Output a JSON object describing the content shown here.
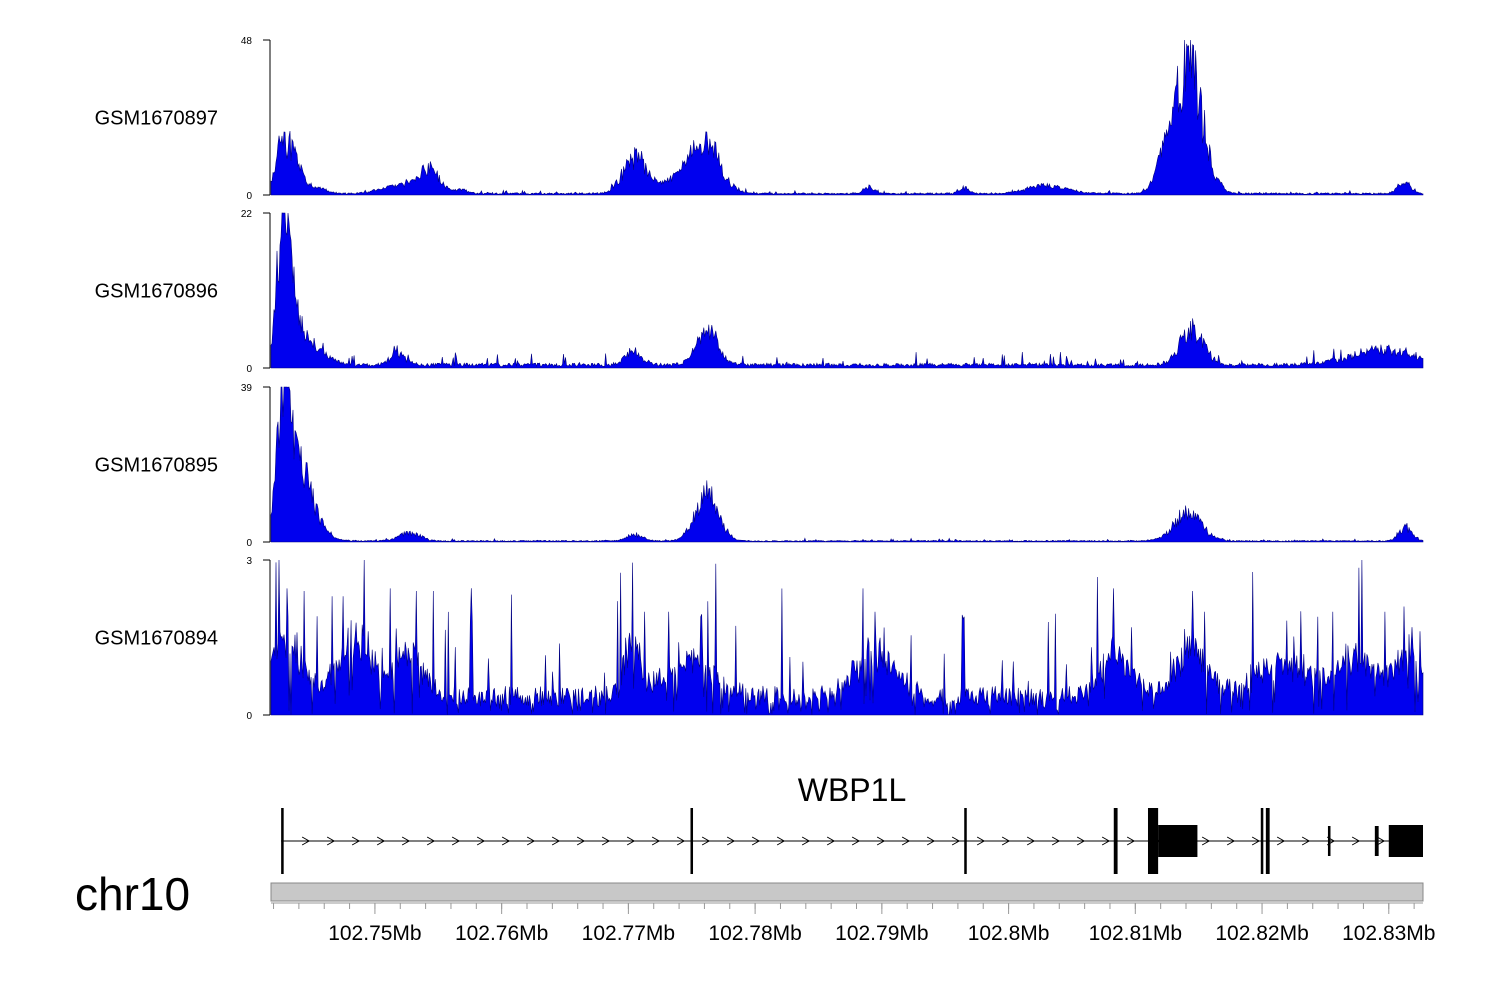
{
  "chart_data": {
    "type": "area",
    "genome": {
      "chromosome": "chr10",
      "xlim": [
        102.7418,
        102.8327
      ],
      "unit": "Mb",
      "ticks": [
        102.75,
        102.76,
        102.77,
        102.78,
        102.79,
        102.8,
        102.81,
        102.82,
        102.83
      ],
      "tick_labels": [
        "102.75Mb",
        "102.76Mb",
        "102.77Mb",
        "102.78Mb",
        "102.79Mb",
        "102.8Mb",
        "102.81Mb",
        "102.82Mb",
        "102.83Mb"
      ]
    },
    "fill_color": "#0000ee",
    "tracks": [
      {
        "name": "GSM1670897",
        "ylim": [
          0,
          48
        ],
        "ylim_labels": [
          "0",
          "48"
        ],
        "baseline": 0.5,
        "peaks": [
          [
            102.7425,
            7,
            0.0003
          ],
          [
            102.7432,
            17,
            0.0008
          ],
          [
            102.7455,
            2,
            0.0006
          ],
          [
            102.7522,
            3,
            0.0015
          ],
          [
            102.7543,
            8,
            0.0008
          ],
          [
            102.7568,
            1.5,
            0.0005
          ],
          [
            102.7705,
            13,
            0.0009
          ],
          [
            102.7735,
            3,
            0.0015
          ],
          [
            102.7762,
            16,
            0.0011
          ],
          [
            102.7748,
            4,
            0.0012
          ],
          [
            102.789,
            2.5,
            0.0004
          ],
          [
            102.7965,
            2,
            0.0004
          ],
          [
            102.8031,
            3,
            0.0015
          ],
          [
            102.8142,
            46,
            0.0011
          ],
          [
            102.8125,
            10,
            0.0008
          ],
          [
            102.8312,
            4,
            0.0005
          ]
        ],
        "noise_amp": 1.5
      },
      {
        "name": "GSM1670896",
        "ylim": [
          0,
          22
        ],
        "ylim_labels": [
          "0",
          "22"
        ],
        "baseline": 0.5,
        "peaks": [
          [
            102.7428,
            21,
            0.0005
          ],
          [
            102.7436,
            7,
            0.0009
          ],
          [
            102.7455,
            2,
            0.001
          ],
          [
            102.7518,
            2,
            0.0006
          ],
          [
            102.7703,
            2.5,
            0.0006
          ],
          [
            102.7762,
            6,
            0.0008
          ],
          [
            102.8145,
            6,
            0.0009
          ],
          [
            102.8295,
            2.5,
            0.0025
          ]
        ],
        "noise_amp": 3
      },
      {
        "name": "GSM1670895",
        "ylim": [
          0,
          39
        ],
        "ylim_labels": [
          "0",
          "39"
        ],
        "baseline": 0.3,
        "peaks": [
          [
            102.7428,
            37,
            0.0005
          ],
          [
            102.7437,
            20,
            0.001
          ],
          [
            102.7448,
            6,
            0.0011
          ],
          [
            102.7527,
            2.5,
            0.0008
          ],
          [
            102.7705,
            2,
            0.0006
          ],
          [
            102.7762,
            14,
            0.0009
          ],
          [
            102.8141,
            8,
            0.0011
          ],
          [
            102.8313,
            4,
            0.0005
          ]
        ],
        "noise_amp": 1
      },
      {
        "name": "GSM1670894",
        "ylim": [
          0,
          3
        ],
        "ylim_labels": [
          "0",
          "3"
        ],
        "baseline": 0.4,
        "peaks": [
          [
            102.743,
            1.2,
            0.0012
          ],
          [
            102.7485,
            1.2,
            0.0015
          ],
          [
            102.7528,
            1.0,
            0.001
          ],
          [
            102.7703,
            1.5,
            0.0005
          ],
          [
            102.7748,
            0.8,
            0.002
          ],
          [
            102.7895,
            1.0,
            0.0015
          ],
          [
            102.8084,
            1.0,
            0.0012
          ],
          [
            102.8145,
            1.1,
            0.0012
          ],
          [
            102.8215,
            0.8,
            0.002
          ],
          [
            102.8275,
            0.8,
            0.0018
          ],
          [
            102.8315,
            0.9,
            0.001
          ]
        ],
        "spikes": [
          [
            102.7431,
            2.45
          ],
          [
            102.7444,
            2.4
          ],
          [
            102.7466,
            2.3
          ],
          [
            102.7475,
            2.3
          ],
          [
            102.7512,
            2.45
          ],
          [
            102.7533,
            2.4
          ],
          [
            102.7546,
            2.4
          ],
          [
            102.7575,
            1.8
          ],
          [
            102.7703,
            2.95
          ],
          [
            102.7713,
            2.0
          ],
          [
            102.7732,
            2.0
          ],
          [
            102.7757,
            1.9
          ],
          [
            102.7885,
            2.45
          ],
          [
            102.7895,
            2.0
          ],
          [
            102.7965,
            1.9
          ],
          [
            102.8031,
            1.8
          ],
          [
            102.8083,
            2.45
          ],
          [
            102.8097,
            1.7
          ],
          [
            102.8145,
            2.4
          ],
          [
            102.8155,
            2.0
          ],
          [
            102.8244,
            1.9
          ],
          [
            102.8256,
            2.0
          ],
          [
            102.8297,
            2.0
          ],
          [
            102.8312,
            2.1
          ],
          [
            102.8318,
            1.7
          ]
        ],
        "noise_amp": 2.2
      }
    ],
    "gene": {
      "name": "WBP1L",
      "strand": "+",
      "line": [
        102.7426,
        102.8327
      ],
      "exons": [
        [
          102.7426,
          102.7428,
          "thin"
        ],
        [
          102.7749,
          102.7751,
          "thin"
        ],
        [
          102.7965,
          102.7967,
          "thin"
        ],
        [
          102.8083,
          102.8086,
          "thin"
        ],
        [
          102.811,
          102.8118,
          "thick"
        ],
        [
          102.8118,
          102.8149,
          "medium"
        ],
        [
          102.8199,
          102.8201,
          "thin"
        ],
        [
          102.8203,
          102.8206,
          "thick"
        ],
        [
          102.8252,
          102.8254,
          "thin"
        ],
        [
          102.8289,
          102.8292,
          "thin"
        ],
        [
          102.83,
          102.8327,
          "medium"
        ]
      ]
    }
  }
}
